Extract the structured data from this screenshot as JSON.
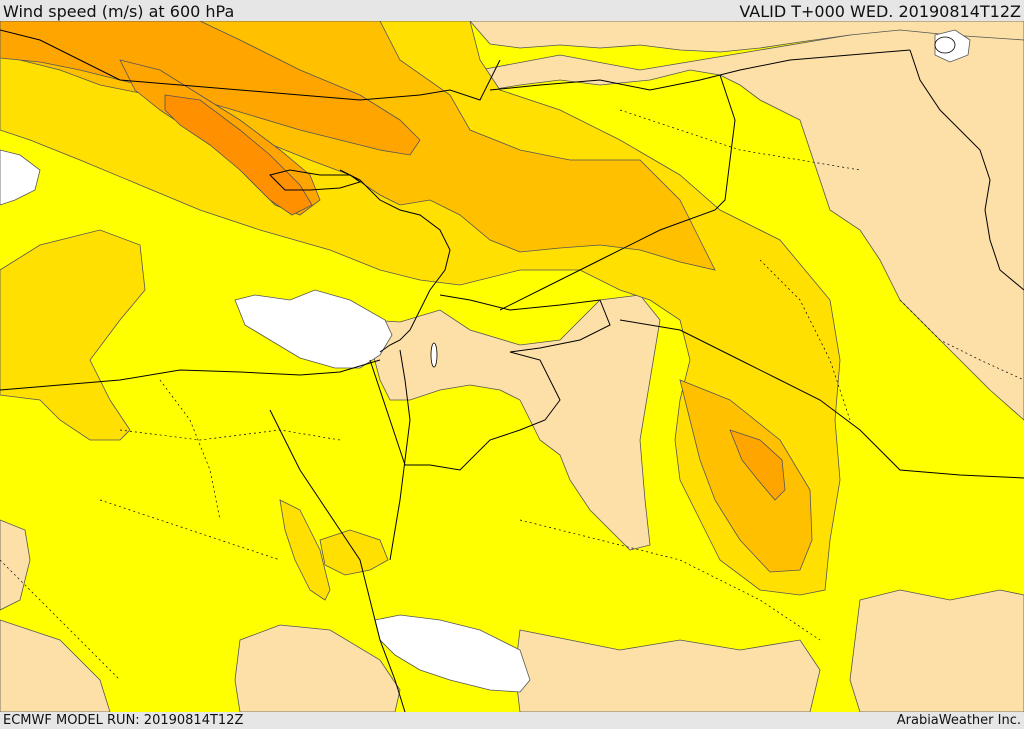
{
  "header": {
    "title": "Wind speed (m/s) at 600 hPa",
    "valid": "VALID T+000 WED. 20190814T12Z"
  },
  "footer": {
    "model_run": "ECMWF MODEL RUN: 20190814T12Z",
    "credit": "ArabiaWeather Inc."
  },
  "map": {
    "variable": "wind speed",
    "units": "m/s",
    "level": "600 hPa",
    "region": "Eastern Mediterranean / Levant / Middle East",
    "palette": {
      "white": "#ffffff",
      "peach": "#fde0a8",
      "yellow": "#ffff00",
      "light_gold": "#ffe000",
      "gold": "#ffc000",
      "orange": "#ffa500",
      "dark_orange": "#ff9000"
    }
  }
}
